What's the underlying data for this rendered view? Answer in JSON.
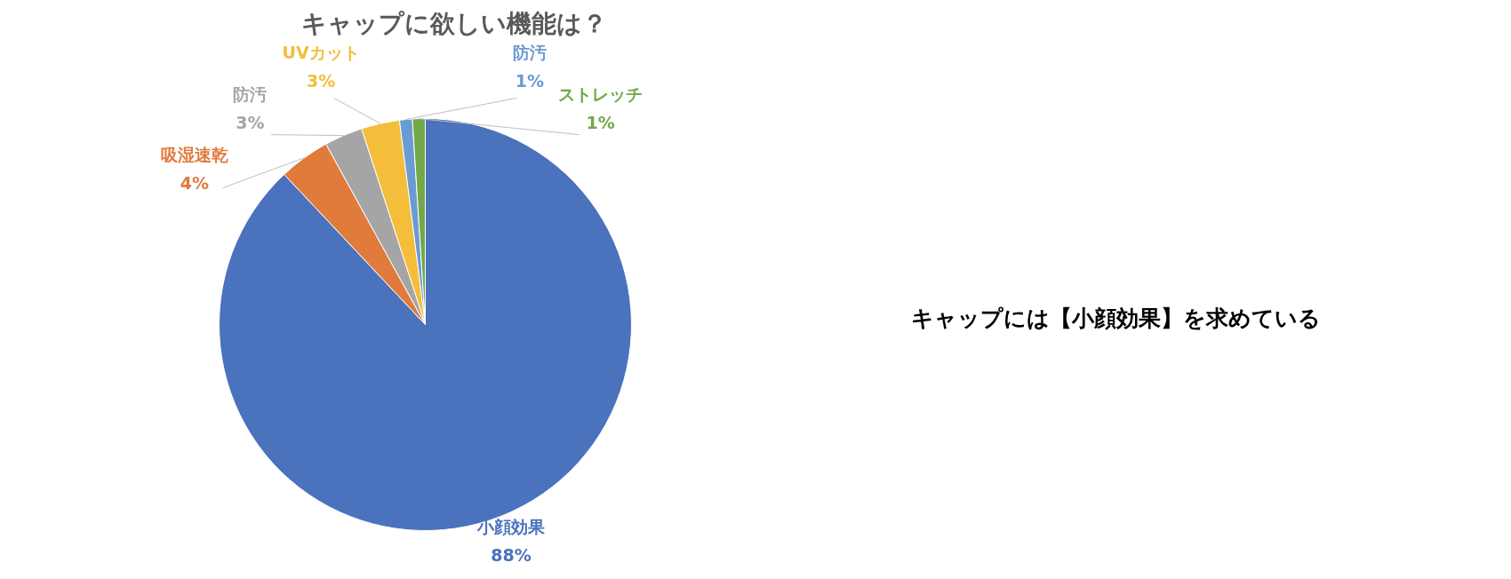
{
  "chart_data": {
    "type": "pie",
    "title": "キャップに欲しい機能は？",
    "categories": [
      "小顔効果",
      "吸湿速乾",
      "防汚",
      "UVカット",
      "防汚",
      "ストレッチ"
    ],
    "values": [
      88,
      4,
      3,
      3,
      1,
      1
    ],
    "value_labels": [
      "88%",
      "4%",
      "3%",
      "3%",
      "1%",
      "1%"
    ],
    "colors": [
      "#4a72bd",
      "#e07b3c",
      "#a5a5a5",
      "#f4bd3a",
      "#6a9bd3",
      "#72a84a"
    ],
    "annotations": [
      "キャップには【小顔効果】を求めている"
    ]
  }
}
